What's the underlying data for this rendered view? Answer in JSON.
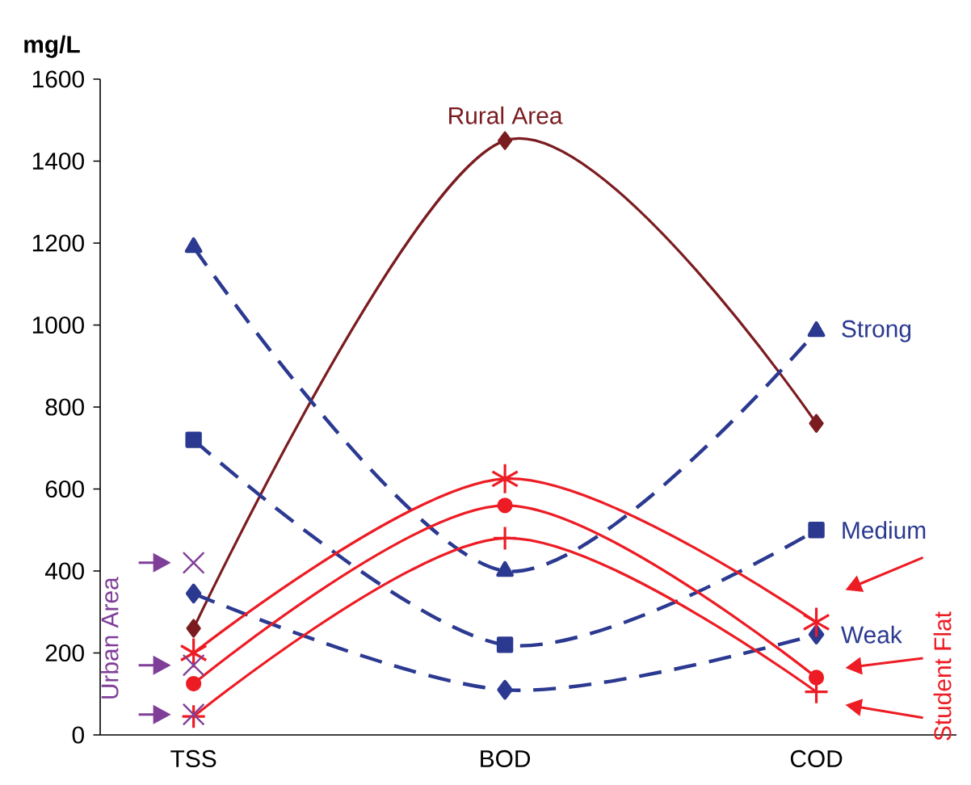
{
  "chart_data": {
    "type": "line",
    "ylabel": "mg/L",
    "categories": [
      "TSS",
      "BOD",
      "COD"
    ],
    "ylim": [
      0,
      1600
    ],
    "yticks": [
      0,
      200,
      400,
      600,
      800,
      1000,
      1200,
      1400,
      1600
    ],
    "grid": false,
    "series": [
      {
        "name": "Rural Area",
        "color": "#7b1c20",
        "values": [
          260,
          1450,
          760
        ],
        "marker": "diamond",
        "line_style": "solid"
      },
      {
        "name": "Strong",
        "color": "#2b3990",
        "values": [
          1190,
          400,
          985
        ],
        "marker": "triangle",
        "line_style": "dashed"
      },
      {
        "name": "Medium",
        "color": "#2b3990",
        "values": [
          720,
          220,
          500
        ],
        "marker": "square",
        "line_style": "dashed"
      },
      {
        "name": "Weak",
        "color": "#2b3990",
        "values": [
          345,
          110,
          245
        ],
        "marker": "diamond",
        "line_style": "dashed"
      },
      {
        "color": "#ed1c24",
        "values": [
          200,
          625,
          275
        ],
        "marker": "cross",
        "line_style": "solid"
      },
      {
        "color": "#ed1c24",
        "values": [
          125,
          560,
          140
        ],
        "marker": "circle",
        "line_style": "solid"
      },
      {
        "color": "#ed1c24",
        "values": [
          45,
          480,
          105
        ],
        "marker": "plus",
        "line_style": "solid"
      },
      {
        "type": "scatter",
        "color": "#7f3f98",
        "x": [
          "TSS",
          "TSS",
          "TSS"
        ],
        "values": [
          420,
          170,
          50
        ],
        "marker": "cross"
      }
    ],
    "annotations": [
      "Student Flat",
      "Urban Area"
    ]
  }
}
